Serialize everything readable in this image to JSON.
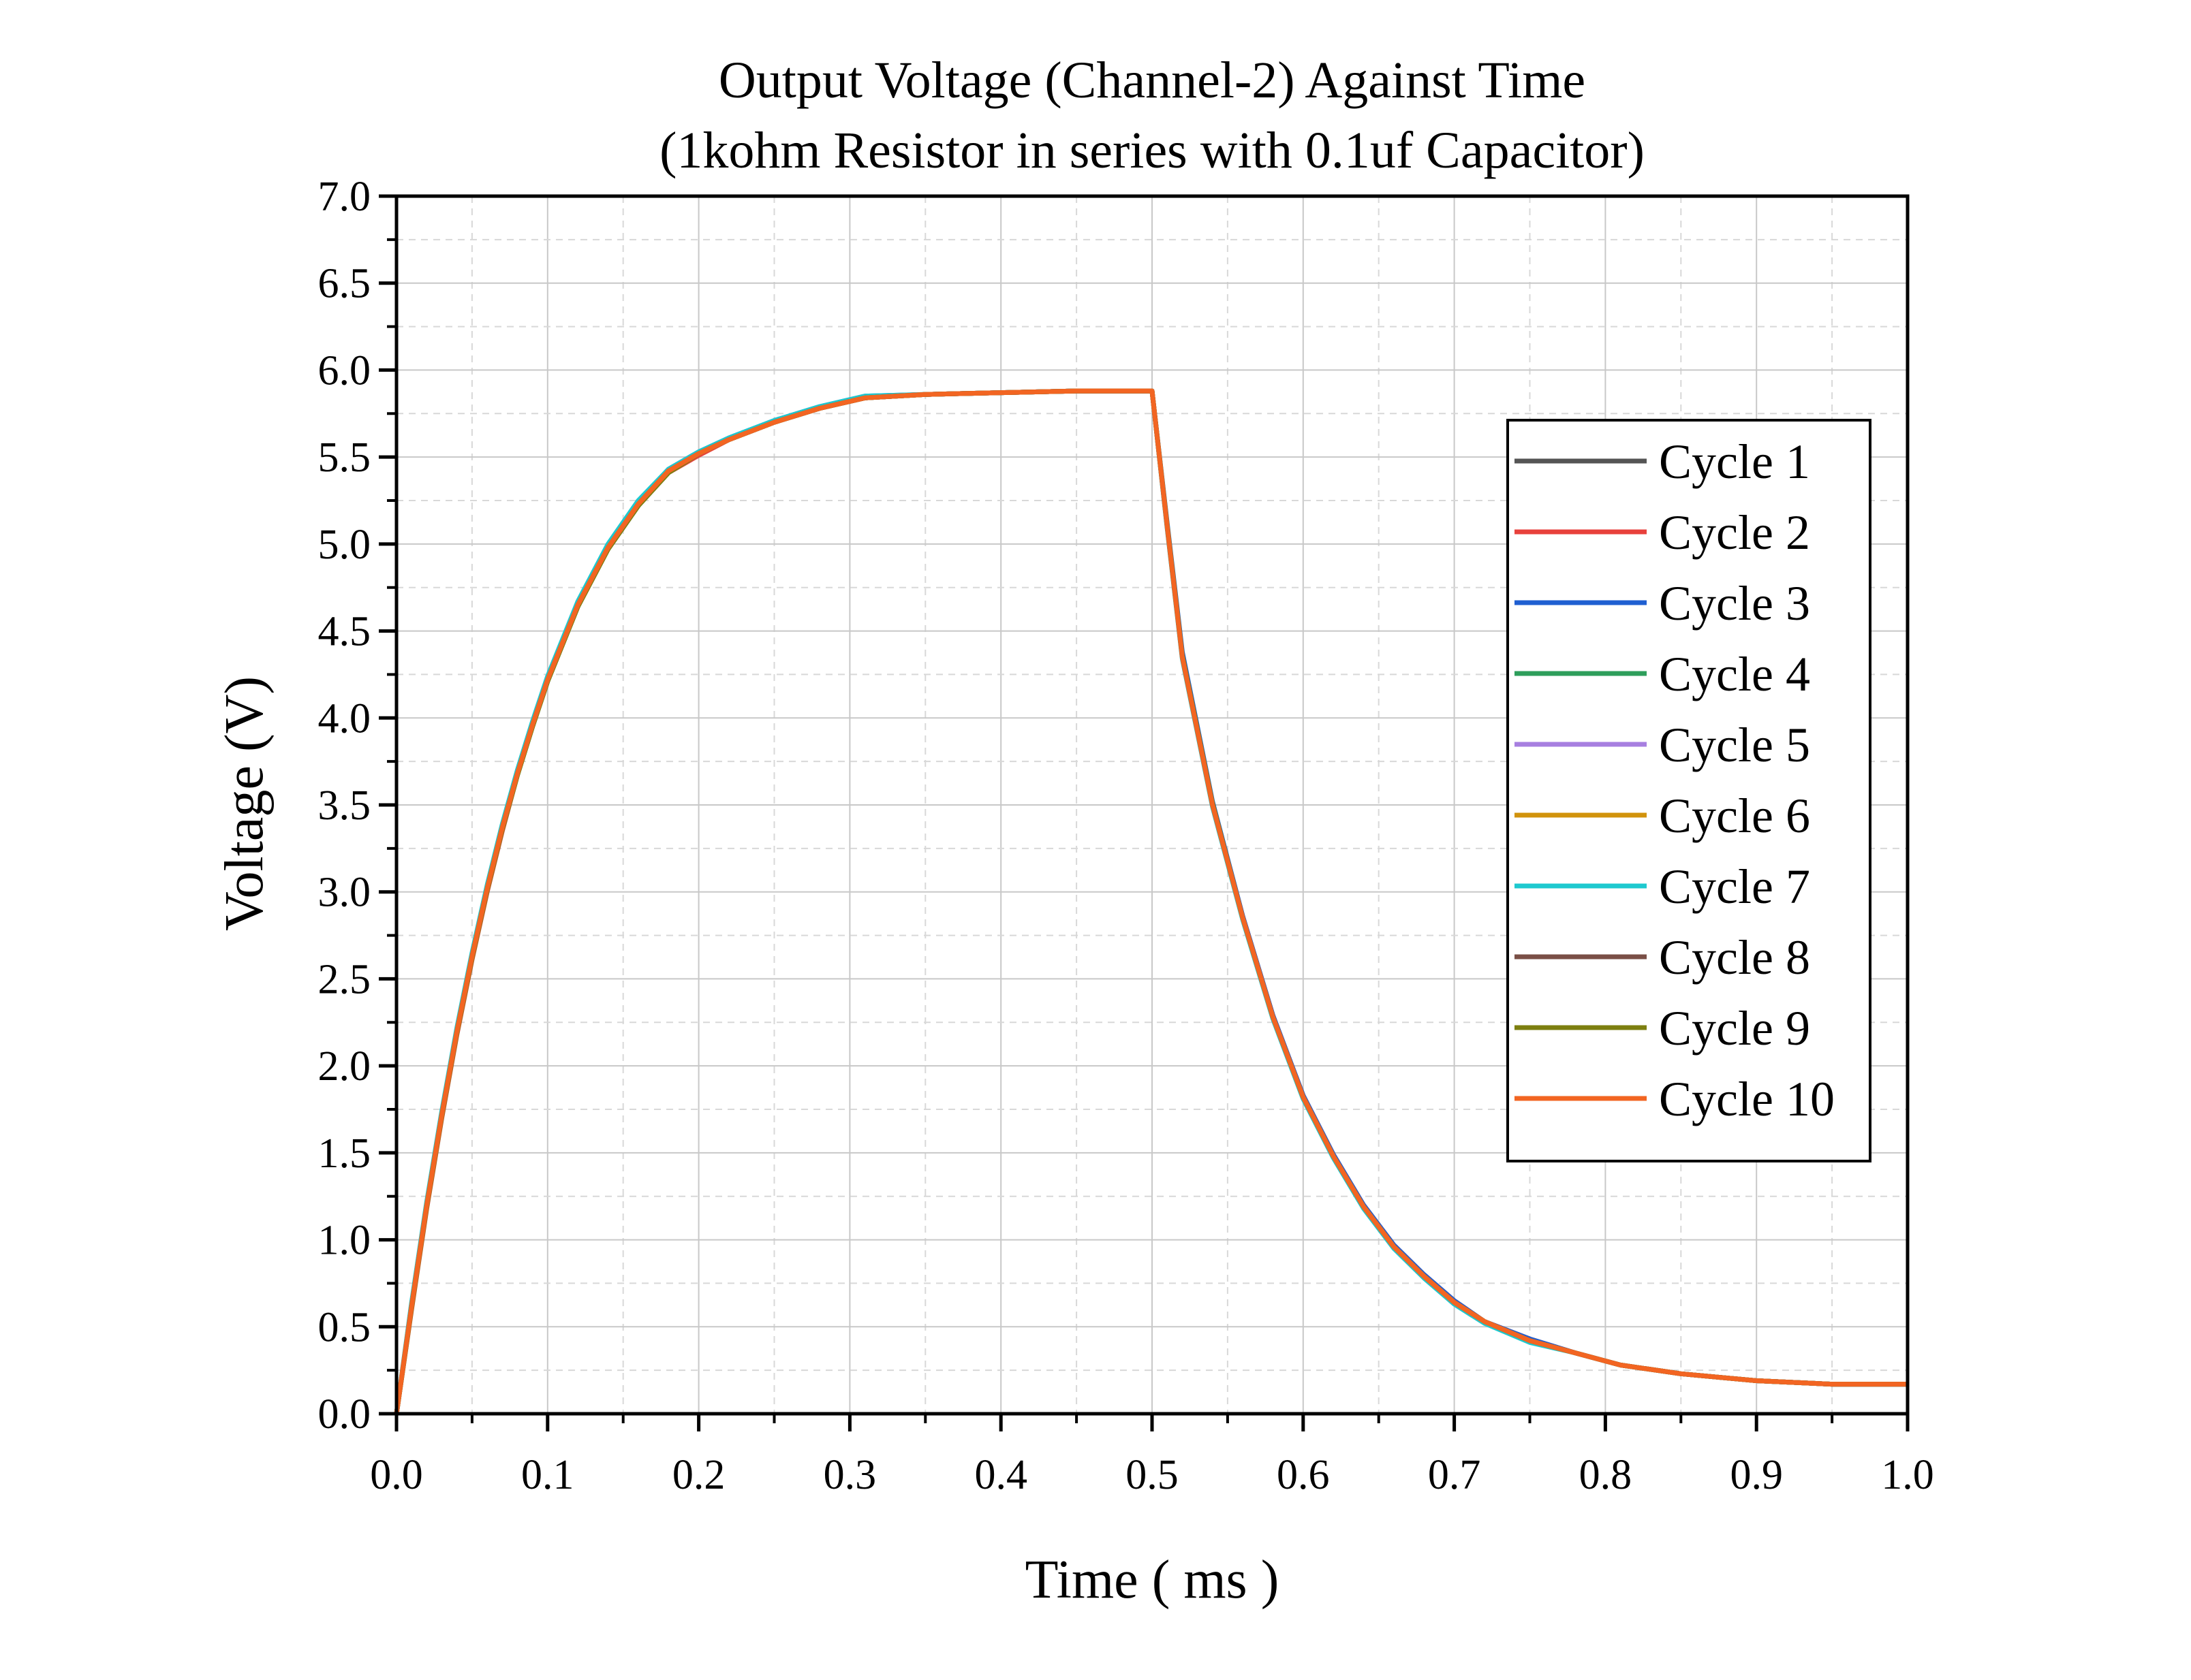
{
  "chart_data": {
    "type": "line",
    "title": "Output Voltage (Channel-2) Against Time",
    "subtitle": "(1kohm Resistor in series with 0.1uf Capacitor)",
    "xlabel": "Time ( ms )",
    "ylabel": "Voltage (V)",
    "xlim": [
      0.0,
      1.0
    ],
    "ylim": [
      0.0,
      7.0
    ],
    "x_ticks": [
      "0.0",
      "0.1",
      "0.2",
      "0.3",
      "0.4",
      "0.5",
      "0.6",
      "0.7",
      "0.8",
      "0.9",
      "1.0"
    ],
    "y_ticks": [
      "0.0",
      "0.5",
      "1.0",
      "1.5",
      "2.0",
      "2.5",
      "3.0",
      "3.5",
      "4.0",
      "4.5",
      "5.0",
      "5.5",
      "6.0",
      "6.5",
      "7.0"
    ],
    "grid": true,
    "legend_position": "right",
    "x": [
      0.0,
      0.01,
      0.02,
      0.03,
      0.04,
      0.05,
      0.06,
      0.07,
      0.08,
      0.09,
      0.1,
      0.12,
      0.14,
      0.16,
      0.18,
      0.2,
      0.22,
      0.25,
      0.28,
      0.31,
      0.35,
      0.4,
      0.45,
      0.49,
      0.5,
      0.51,
      0.52,
      0.54,
      0.56,
      0.58,
      0.6,
      0.62,
      0.64,
      0.66,
      0.68,
      0.7,
      0.72,
      0.75,
      0.78,
      0.81,
      0.85,
      0.9,
      0.95,
      1.0
    ],
    "series": [
      {
        "name": "Cycle 1",
        "color": "#555555",
        "values": [
          0.0,
          0.62,
          1.2,
          1.72,
          2.2,
          2.63,
          3.02,
          3.37,
          3.68,
          3.96,
          4.22,
          4.65,
          4.98,
          5.23,
          5.42,
          5.52,
          5.6,
          5.7,
          5.78,
          5.84,
          5.86,
          5.87,
          5.88,
          5.88,
          5.88,
          5.1,
          4.35,
          3.5,
          2.85,
          2.28,
          1.82,
          1.48,
          1.19,
          0.96,
          0.79,
          0.64,
          0.53,
          0.42,
          0.35,
          0.28,
          0.23,
          0.19,
          0.17,
          0.17
        ]
      },
      {
        "name": "Cycle 2",
        "color": "#e8413c",
        "values": [
          0.0,
          0.6,
          1.18,
          1.7,
          2.18,
          2.61,
          3.0,
          3.35,
          3.67,
          3.95,
          4.21,
          4.64,
          4.97,
          5.22,
          5.41,
          5.51,
          5.6,
          5.7,
          5.78,
          5.84,
          5.86,
          5.87,
          5.88,
          5.88,
          5.88,
          5.1,
          4.36,
          3.51,
          2.86,
          2.29,
          1.83,
          1.49,
          1.2,
          0.97,
          0.8,
          0.65,
          0.53,
          0.43,
          0.35,
          0.28,
          0.23,
          0.19,
          0.17,
          0.17
        ]
      },
      {
        "name": "Cycle 3",
        "color": "#1f5fd1",
        "values": [
          0.0,
          0.63,
          1.21,
          1.73,
          2.21,
          2.64,
          3.03,
          3.38,
          3.69,
          3.97,
          4.23,
          4.66,
          4.99,
          5.24,
          5.43,
          5.53,
          5.61,
          5.71,
          5.79,
          5.85,
          5.86,
          5.87,
          5.88,
          5.88,
          5.88,
          5.12,
          4.38,
          3.52,
          2.86,
          2.29,
          1.83,
          1.49,
          1.2,
          0.97,
          0.8,
          0.65,
          0.53,
          0.43,
          0.35,
          0.28,
          0.23,
          0.19,
          0.17,
          0.17
        ]
      },
      {
        "name": "Cycle 4",
        "color": "#2e9e5b",
        "values": [
          0.0,
          0.61,
          1.19,
          1.71,
          2.19,
          2.62,
          3.01,
          3.36,
          3.67,
          3.95,
          4.21,
          4.64,
          4.97,
          5.22,
          5.41,
          5.52,
          5.6,
          5.7,
          5.78,
          5.84,
          5.86,
          5.87,
          5.88,
          5.88,
          5.88,
          5.1,
          4.35,
          3.5,
          2.85,
          2.28,
          1.82,
          1.48,
          1.19,
          0.96,
          0.79,
          0.64,
          0.53,
          0.42,
          0.35,
          0.28,
          0.23,
          0.19,
          0.17,
          0.17
        ]
      },
      {
        "name": "Cycle 5",
        "color": "#a77fe0",
        "values": [
          0.0,
          0.62,
          1.2,
          1.72,
          2.2,
          2.63,
          3.02,
          3.37,
          3.68,
          3.96,
          4.22,
          4.65,
          4.98,
          5.23,
          5.42,
          5.52,
          5.6,
          5.7,
          5.78,
          5.84,
          5.86,
          5.87,
          5.88,
          5.88,
          5.88,
          5.1,
          4.35,
          3.5,
          2.85,
          2.28,
          1.82,
          1.48,
          1.19,
          0.96,
          0.79,
          0.64,
          0.53,
          0.42,
          0.35,
          0.28,
          0.23,
          0.19,
          0.17,
          0.17
        ]
      },
      {
        "name": "Cycle 6",
        "color": "#d1930c",
        "values": [
          0.0,
          0.62,
          1.2,
          1.72,
          2.2,
          2.63,
          3.02,
          3.37,
          3.68,
          3.96,
          4.22,
          4.65,
          4.98,
          5.23,
          5.42,
          5.52,
          5.6,
          5.7,
          5.78,
          5.84,
          5.86,
          5.87,
          5.88,
          5.88,
          5.88,
          5.1,
          4.35,
          3.5,
          2.85,
          2.28,
          1.82,
          1.48,
          1.19,
          0.96,
          0.79,
          0.64,
          0.53,
          0.42,
          0.35,
          0.28,
          0.23,
          0.19,
          0.17,
          0.17
        ]
      },
      {
        "name": "Cycle 7",
        "color": "#1ec9cf",
        "values": [
          0.0,
          0.64,
          1.22,
          1.74,
          2.22,
          2.65,
          3.04,
          3.39,
          3.7,
          3.98,
          4.24,
          4.67,
          5.0,
          5.25,
          5.43,
          5.53,
          5.61,
          5.71,
          5.79,
          5.85,
          5.86,
          5.87,
          5.88,
          5.88,
          5.88,
          5.09,
          4.34,
          3.49,
          2.84,
          2.27,
          1.81,
          1.47,
          1.18,
          0.95,
          0.78,
          0.63,
          0.52,
          0.41,
          0.35,
          0.28,
          0.23,
          0.19,
          0.17,
          0.17
        ]
      },
      {
        "name": "Cycle 8",
        "color": "#7a4f46",
        "values": [
          0.0,
          0.62,
          1.2,
          1.72,
          2.2,
          2.63,
          3.02,
          3.37,
          3.68,
          3.96,
          4.22,
          4.65,
          4.98,
          5.23,
          5.42,
          5.52,
          5.6,
          5.7,
          5.78,
          5.84,
          5.86,
          5.87,
          5.88,
          5.88,
          5.88,
          5.1,
          4.35,
          3.5,
          2.85,
          2.28,
          1.82,
          1.48,
          1.19,
          0.96,
          0.79,
          0.64,
          0.53,
          0.42,
          0.35,
          0.28,
          0.23,
          0.19,
          0.17,
          0.17
        ]
      },
      {
        "name": "Cycle 9",
        "color": "#7d7f10",
        "values": [
          0.0,
          0.61,
          1.19,
          1.71,
          2.19,
          2.62,
          3.01,
          3.36,
          3.67,
          3.95,
          4.21,
          4.64,
          4.97,
          5.22,
          5.41,
          5.52,
          5.6,
          5.7,
          5.78,
          5.84,
          5.86,
          5.87,
          5.88,
          5.88,
          5.88,
          5.11,
          4.36,
          3.51,
          2.85,
          2.28,
          1.82,
          1.48,
          1.19,
          0.96,
          0.79,
          0.64,
          0.53,
          0.42,
          0.35,
          0.28,
          0.23,
          0.19,
          0.17,
          0.17
        ]
      },
      {
        "name": "Cycle 10",
        "color": "#f26522",
        "values": [
          0.0,
          0.62,
          1.2,
          1.72,
          2.2,
          2.63,
          3.02,
          3.37,
          3.68,
          3.96,
          4.22,
          4.65,
          4.98,
          5.23,
          5.42,
          5.52,
          5.6,
          5.7,
          5.78,
          5.84,
          5.86,
          5.87,
          5.88,
          5.88,
          5.88,
          5.1,
          4.35,
          3.5,
          2.85,
          2.28,
          1.82,
          1.48,
          1.19,
          0.96,
          0.79,
          0.64,
          0.53,
          0.42,
          0.35,
          0.28,
          0.23,
          0.19,
          0.17,
          0.17
        ]
      }
    ]
  }
}
